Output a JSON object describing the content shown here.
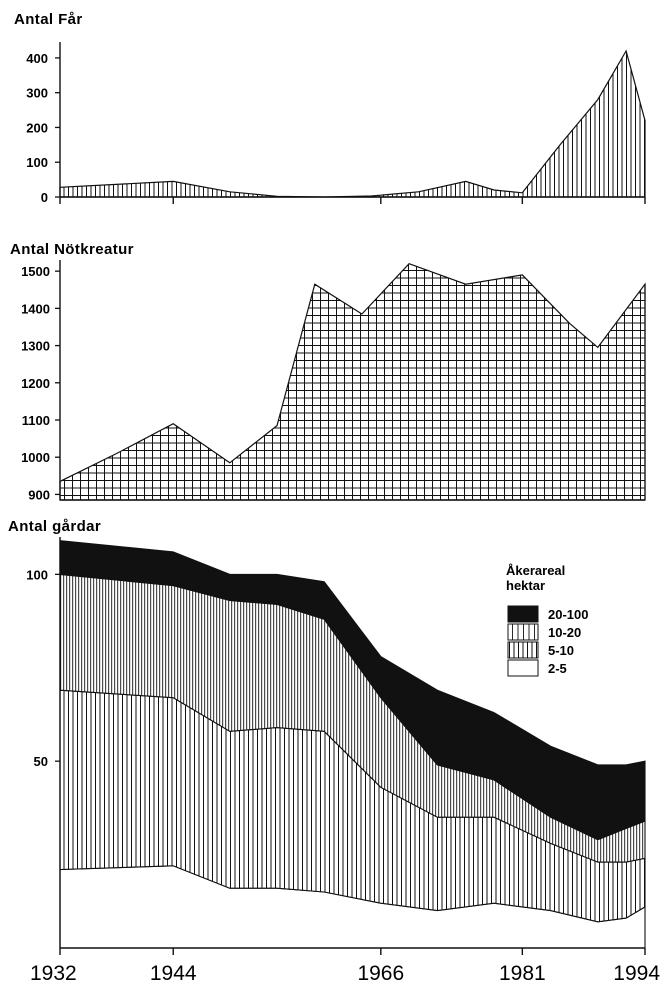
{
  "colors": {
    "ink": "#111111",
    "paper": "#ffffff"
  },
  "x_ticks": [
    "1932",
    "1944",
    "1966",
    "1981",
    "1994"
  ],
  "chart_data": [
    {
      "type": "area",
      "title": "Antal Får",
      "x": [
        1932,
        1944,
        1950,
        1955,
        1960,
        1965,
        1970,
        1975,
        1978,
        1981,
        1985,
        1989,
        1992,
        1994
      ],
      "series": [
        {
          "values": [
            28,
            45,
            15,
            2,
            0,
            3,
            15,
            45,
            20,
            12,
            150,
            280,
            420,
            220
          ]
        }
      ],
      "y_ticks": [
        0,
        100,
        200,
        300,
        400
      ],
      "ylim": [
        0,
        440
      ],
      "xlim": [
        1932,
        1994
      ]
    },
    {
      "type": "area",
      "title": "Antal Nötkreatur",
      "x": [
        1932,
        1938,
        1944,
        1950,
        1955,
        1959,
        1964,
        1969,
        1975,
        1981,
        1986,
        1989,
        1994
      ],
      "series": [
        {
          "values": [
            935,
            1010,
            1090,
            985,
            1085,
            1465,
            1385,
            1520,
            1465,
            1490,
            1360,
            1295,
            1465
          ]
        }
      ],
      "y_ticks": [
        900,
        1000,
        1100,
        1200,
        1300,
        1400,
        1500
      ],
      "ylim": [
        885,
        1530
      ],
      "xlim": [
        1932,
        1994
      ]
    },
    {
      "type": "area",
      "title": "Antal gårdar",
      "stacked": true,
      "x": [
        1932,
        1944,
        1950,
        1955,
        1960,
        1966,
        1972,
        1978,
        1984,
        1989,
        1992,
        1994
      ],
      "series": [
        {
          "name": "2-5",
          "values": [
            21,
            22,
            16,
            16,
            15,
            12,
            10,
            12,
            10,
            7,
            8,
            11
          ]
        },
        {
          "name": "5-10",
          "values": [
            48,
            45,
            42,
            43,
            43,
            31,
            25,
            23,
            18,
            16,
            15,
            13
          ]
        },
        {
          "name": "10-20",
          "values": [
            31,
            30,
            35,
            33,
            30,
            24,
            14,
            10,
            7,
            6,
            9,
            10
          ]
        },
        {
          "name": "20-100",
          "values": [
            9,
            9,
            7,
            8,
            10,
            11,
            20,
            18,
            19,
            20,
            17,
            16
          ]
        }
      ],
      "y_ticks": [
        50,
        100
      ],
      "ylim": [
        0,
        110
      ],
      "xlim": [
        1932,
        1994
      ],
      "legend": {
        "title_line1": "Åkerareal",
        "title_line2": "hektar",
        "placement": "right"
      }
    }
  ]
}
